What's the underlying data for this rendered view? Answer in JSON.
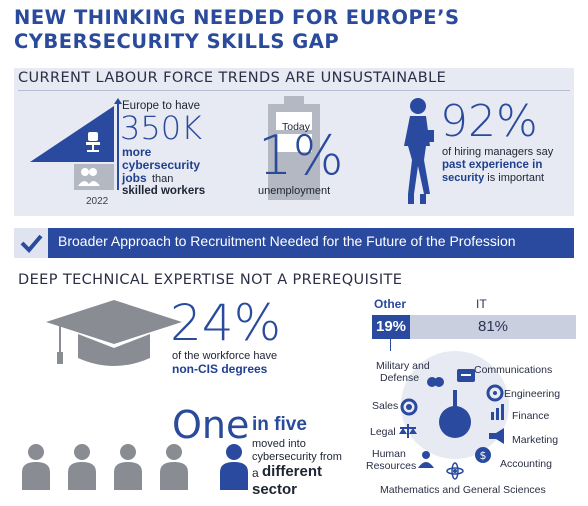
{
  "title": {
    "line1": "NEW THINKING NEEDED FOR EUROPE’S",
    "line2": "CYBERSECURITY SKILLS GAP"
  },
  "section1": {
    "heading": "CURRENT LABOUR FORCE TRENDS ARE UNSUSTAINABLE",
    "gap": {
      "intro": "Europe to have",
      "value": "350K",
      "more": "more",
      "jobs_word": "cybersecurity",
      "jobs": "jobs",
      "than": "than",
      "workers": "skilled workers",
      "year": "2022"
    },
    "unemployment": {
      "label_top": "Today",
      "value": "1%",
      "label": "unemployment"
    },
    "managers": {
      "value": "92%",
      "line1": "of hiring managers say",
      "line2": "past experience in",
      "line3a": "security",
      "line3b": " is important"
    }
  },
  "banner": {
    "text": "Broader Approach to Recruitment Needed for the Future of the Profession"
  },
  "section2": {
    "heading": "DEEP TECHNICAL EXPERTISE NOT A PREREQUISITE",
    "degrees": {
      "value": "24%",
      "line1": "of the workforce have",
      "line2": "non-CIS degrees"
    },
    "one_in_five": {
      "one": "One",
      "in_five": "in five",
      "line1": "moved into",
      "line2": "cybersecurity from",
      "a": "a",
      "different": "different",
      "sector": "sector"
    },
    "split": {
      "other_label": "Other",
      "it_label": "IT",
      "other_value": "19%",
      "it_value": "81%",
      "other_fraction": 0.19,
      "it_fraction": 0.81
    },
    "sectors": {
      "military": "Military and",
      "defense": "Defense",
      "communications": "Communications",
      "engineering": "Engineering",
      "sales": "Sales",
      "finance": "Finance",
      "legal": "Legal",
      "marketing": "Marketing",
      "human": "Human",
      "resources": "Resources",
      "accounting": "Accounting",
      "math": "Mathematics and General Sciences"
    }
  },
  "colors": {
    "brand_blue": "#2a4aa0",
    "panel_bg": "#e7eaf2",
    "gray_person": "#8a8c93"
  }
}
